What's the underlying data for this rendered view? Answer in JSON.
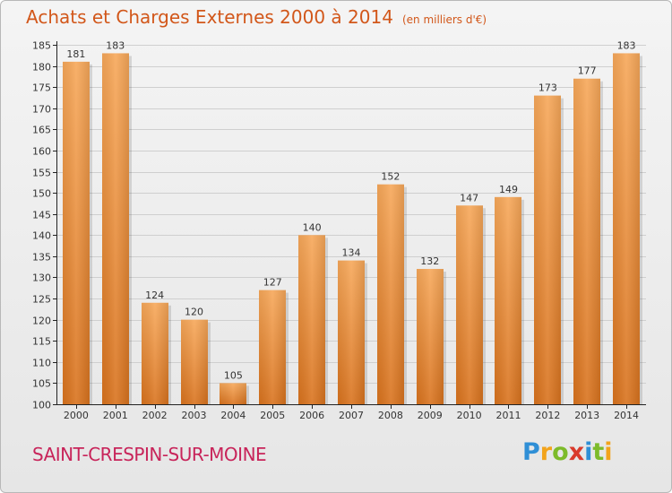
{
  "header": {
    "title": "Achats et Charges Externes 2000 à 2014",
    "unit": "(en milliers d'€)"
  },
  "footer": {
    "town": "SAINT-CRESPIN-SUR-MOINE",
    "logo_letters": [
      {
        "ch": "P",
        "color": "#2f8fd6"
      },
      {
        "ch": "r",
        "color": "#f2a31b"
      },
      {
        "ch": "o",
        "color": "#7dbb2a"
      },
      {
        "ch": "x",
        "color": "#d93a2b"
      },
      {
        "ch": "i",
        "color": "#2f8fd6"
      },
      {
        "ch": "t",
        "color": "#7dbb2a"
      },
      {
        "ch": "i",
        "color": "#f2a31b"
      }
    ]
  },
  "colors": {
    "bar_top": "#f7a85a",
    "bar_bottom": "#d9731e",
    "grid": "#cfcfcf",
    "axis": "#222222",
    "title": "#d2571a",
    "town": "#c8245a"
  },
  "chart_data": {
    "type": "bar",
    "categories": [
      "2000",
      "2001",
      "2002",
      "2003",
      "2004",
      "2005",
      "2006",
      "2007",
      "2008",
      "2009",
      "2010",
      "2011",
      "2012",
      "2013",
      "2014"
    ],
    "values": [
      181,
      183,
      124,
      120,
      105,
      127,
      140,
      134,
      152,
      132,
      147,
      149,
      173,
      177,
      183
    ],
    "ylim": [
      100,
      185
    ],
    "yticks": [
      100,
      105,
      110,
      115,
      120,
      125,
      130,
      135,
      140,
      145,
      150,
      155,
      160,
      165,
      170,
      175,
      180,
      185
    ],
    "grid": true,
    "legend": "none"
  }
}
